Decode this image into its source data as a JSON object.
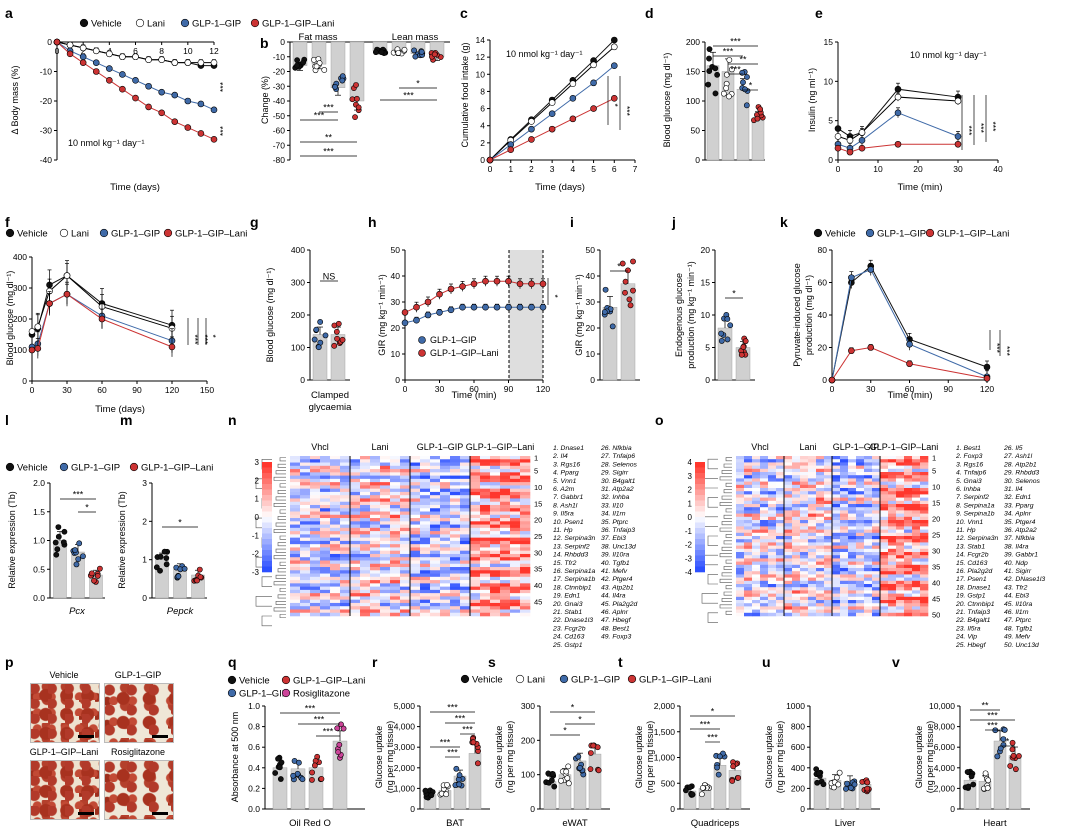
{
  "colors": {
    "vehicle": "#111111",
    "lani": "#ffffff",
    "glp_gip": "#3f6aa8",
    "glp_gip_lani": "#cc3333",
    "rosi": "#cc4499",
    "bar": "#d0d0d0"
  },
  "legends": {
    "vehicle": "Vehicle",
    "lani": "Lani",
    "glp_gip": "GLP-1–GIP",
    "glp_gip_lani": "GLP-1–GIP–Lani",
    "rosi": "Rosiglitazone"
  },
  "panels": {
    "a": {
      "label": "a",
      "xlabel": "Time (days)",
      "ylabel": "Δ Body mass (%)",
      "note": "10 nmol kg⁻¹ day⁻¹",
      "sig": [
        "***",
        "***"
      ]
    },
    "b": {
      "label": "b",
      "ylabel": "Change (%)",
      "cat1": "Fat mass",
      "cat2": "Lean mass"
    },
    "c": {
      "label": "c",
      "xlabel": "Time (days)",
      "ylabel": "Cumulative food intake (g)",
      "note": "10 nmol kg⁻¹ day⁻¹"
    },
    "d": {
      "label": "d",
      "ylabel": "Blood glucose (mg dl⁻¹)"
    },
    "e": {
      "label": "e",
      "xlabel": "Time (min)",
      "ylabel": "Insulin (ng ml⁻¹)",
      "note": "10 nmol kg⁻¹ day⁻¹"
    },
    "f": {
      "label": "f",
      "xlabel": "Time (days)",
      "ylabel": "Blood glucose (mg dl⁻¹)"
    },
    "g": {
      "label": "g",
      "ylabel": "Blood glucose (mg dl⁻¹)",
      "cat": "Clamped",
      "cat2": "glycaemia",
      "sig": "NS"
    },
    "h": {
      "label": "h",
      "xlabel": "Time (min)",
      "ylabel": "GIR (mg kg⁻¹ min⁻¹)",
      "sig": "*"
    },
    "i": {
      "label": "i",
      "ylabel": "GIR (mg kg⁻¹ min⁻¹)",
      "sig": "*"
    },
    "j": {
      "label": "j",
      "ylabel1": "Endogenous glucose",
      "ylabel2": "production (mg kg⁻¹ min⁻¹)",
      "sig": "*"
    },
    "k": {
      "label": "k",
      "xlabel": "Time (min)",
      "ylabel1": "Pyruvate-induced glucose",
      "ylabel2": "production (mg dl⁻¹)"
    },
    "l": {
      "label": "l",
      "ylabel": "Relative expression (Tb)",
      "gene": "Pcx"
    },
    "m": {
      "label": "m",
      "ylabel": "Relative expression (Tb)",
      "gene": "Pepck"
    },
    "n": {
      "label": "n",
      "groups": [
        "Vhcl",
        "Lani",
        "GLP-1–GIP",
        "GLP-1–GIP–Lani"
      ]
    },
    "o": {
      "label": "o",
      "groups": [
        "Vhcl",
        "Lani",
        "GLP-1–GIP",
        "GLP-1–GIP–Lani"
      ]
    },
    "p": {
      "label": "p"
    },
    "q": {
      "label": "q",
      "ylabel": "Absorbance at 500 nm",
      "cat": "Oil Red O"
    },
    "r": {
      "label": "r",
      "ylabel1": "Glucose uptake",
      "ylabel2": "(ng per mg tissue)",
      "cat": "BAT"
    },
    "s": {
      "label": "s",
      "ylabel1": "Glucose uptake",
      "ylabel2": "(ng per mg tissue)",
      "cat": "eWAT"
    },
    "t": {
      "label": "t",
      "ylabel1": "Glucose uptake",
      "ylabel2": "(ng per mg tissue)",
      "cat": "Quadriceps"
    },
    "u": {
      "label": "u",
      "ylabel1": "Glucose uptake",
      "ylabel2": "(ng per mg tissue)",
      "cat": "Liver"
    },
    "v": {
      "label": "v",
      "ylabel1": "Glucose uptake",
      "ylabel2": "(ng per mg tissue)",
      "cat": "Heart"
    }
  },
  "micrographs": [
    "Vehicle",
    "GLP-1–GIP",
    "GLP-1–GIP–Lani",
    "Rosiglitazone"
  ],
  "genes_n": [
    "1. Dnase1",
    "2. Il4",
    "3. Rgs16",
    "4. Pparg",
    "5. Vnn1",
    "6. A2m",
    "7. Gabbr1",
    "8. Ash1l",
    "9. Il5ra",
    "10. Psen1",
    "11. Hp",
    "12. Serpina3n",
    "13. Serpinf2",
    "14. Rhbdd3",
    "15. Tfr2",
    "16. Serpina1a",
    "17. Serpina1b",
    "18. Ctnnbip1",
    "19. Edn1",
    "20. Gnai3",
    "21. Stab1",
    "22. Dnase1l3",
    "23. Fcgr2b",
    "24. Cd163",
    "25. Gstp1",
    "26. Nfkbia",
    "27. Tnfaip6",
    "28. Selenos",
    "29. Sigirr",
    "30. B4galt1",
    "31. Atp2a2",
    "32. Inhba",
    "33. Il10",
    "34. Il1rn",
    "35. Ptprc",
    "36. Tnfaip3",
    "37. Ebi3",
    "38. Unc13d",
    "39. Il10ra",
    "40. Tgfb1",
    "41. Mefv",
    "42. Ptger4",
    "43. Atp2b1",
    "44. Il4ra",
    "45. Pla2g2d",
    "46. Aplnr",
    "47. Hbegf",
    "48. Best1",
    "49. Foxp3"
  ],
  "genes_o": [
    "1. Best1",
    "2. Foxp3",
    "3. Rgs16",
    "4. Tnfaip6",
    "5. Gnai3",
    "6. Inhba",
    "7. Serpinf2",
    "8. Serpina1a",
    "9. Serpina1b",
    "10. Vnn1",
    "11. Hp",
    "12. Serpina3n",
    "13. Stab1",
    "14. Fcgr2b",
    "15. Cd163",
    "16. Pla2g2d",
    "17. Psen1",
    "18. Dnase1",
    "19. Gstp1",
    "20. Ctnnbip1",
    "21. Tnfaip3",
    "22. B4galt1",
    "23. Il5ra",
    "24. Vip",
    "25. Hbegf",
    "26. Il5",
    "27. Ash1l",
    "28. Atp2b1",
    "29. Rhbdd3",
    "30. Selenos",
    "31. Il4",
    "32. Edn1",
    "33. Pparg",
    "34. Aplnr",
    "35. Ptger4",
    "36. Atp2a2",
    "37. Nfkbia",
    "38. Il4ra",
    "39. Gabbr1",
    "40. Ndp",
    "41. Sigirr",
    "42. DNase1l3",
    "43. Tfr2",
    "44. Ebi3",
    "45. Il10ra",
    "46. Il1rn",
    "47. Ptprc",
    "48. Tgfb1",
    "49. Mefv",
    "50. Unc13d"
  ],
  "chart_data": [
    {
      "panel": "a",
      "type": "line",
      "x": [
        0,
        1,
        2,
        3,
        4,
        5,
        6,
        7,
        8,
        9,
        10,
        11,
        12
      ],
      "xlim": [
        0,
        12
      ],
      "ylim": [
        -40,
        0
      ],
      "xlabel": "Time (days)",
      "ylabel": "Δ Body mass (%)",
      "series": [
        {
          "name": "Vehicle",
          "values": [
            0,
            -1,
            -2,
            -3,
            -4,
            -5,
            -5,
            -6,
            -6,
            -7,
            -7,
            -8,
            -8
          ]
        },
        {
          "name": "Lani",
          "values": [
            0,
            -1,
            -2,
            -3,
            -4,
            -5,
            -5,
            -6,
            -6,
            -7,
            -7,
            -7,
            -7
          ]
        },
        {
          "name": "GLP-1–GIP",
          "values": [
            0,
            -3,
            -5,
            -7,
            -9,
            -11,
            -13,
            -15,
            -17,
            -18,
            -20,
            -21,
            -23
          ]
        },
        {
          "name": "GLP-1–GIP–Lani",
          "values": [
            0,
            -4,
            -7,
            -10,
            -13,
            -16,
            -19,
            -22,
            -24,
            -27,
            -29,
            -31,
            -33
          ]
        }
      ]
    },
    {
      "panel": "b",
      "type": "bar",
      "categories": [
        "Fat mass",
        "Lean mass"
      ],
      "ylim": [
        -80,
        0
      ],
      "ylabel": "Change (%)",
      "series": [
        {
          "name": "Vehicle",
          "values": [
            -16,
            -6
          ]
        },
        {
          "name": "Lani",
          "values": [
            -15,
            -7
          ]
        },
        {
          "name": "GLP-1–GIP",
          "values": [
            -31,
            -8
          ]
        },
        {
          "name": "GLP-1–GIP–Lani",
          "values": [
            -40,
            -10
          ]
        }
      ]
    },
    {
      "panel": "c",
      "type": "line",
      "x": [
        0,
        1,
        2,
        3,
        4,
        5,
        6
      ],
      "xlim": [
        0,
        7
      ],
      "ylim": [
        0,
        14
      ],
      "xlabel": "Time (days)",
      "ylabel": "Cumulative food intake (g)",
      "series": [
        {
          "name": "Vehicle",
          "values": [
            0,
            2.4,
            4.7,
            7,
            9.3,
            11.6,
            14
          ]
        },
        {
          "name": "Lani",
          "values": [
            0,
            2.3,
            4.5,
            6.7,
            8.9,
            11.1,
            13.2
          ]
        },
        {
          "name": "GLP-1–GIP",
          "values": [
            0,
            1.8,
            3.6,
            5.4,
            7.2,
            9,
            11
          ]
        },
        {
          "name": "GLP-1–GIP–Lani",
          "values": [
            0,
            1.2,
            2.4,
            3.6,
            4.8,
            6,
            7.2
          ]
        }
      ]
    },
    {
      "panel": "d",
      "type": "bar",
      "categories": [
        "Vehicle",
        "Lani",
        "GLP-1–GIP",
        "GLP-1–GIP–Lani"
      ],
      "values": [
        160,
        150,
        120,
        70
      ],
      "ylim": [
        0,
        200
      ],
      "ylabel": "Blood glucose (mg dl⁻¹)"
    },
    {
      "panel": "e",
      "type": "line",
      "x": [
        0,
        3,
        6,
        15,
        30
      ],
      "xlim": [
        0,
        40
      ],
      "ylim": [
        0,
        15
      ],
      "xlabel": "Time (min)",
      "ylabel": "Insulin (ng ml⁻¹)",
      "series": [
        {
          "name": "Vehicle",
          "values": [
            4,
            3,
            3.5,
            9,
            8
          ]
        },
        {
          "name": "Lani",
          "values": [
            3,
            2.5,
            3.5,
            8,
            7.5
          ]
        },
        {
          "name": "GLP-1–GIP",
          "values": [
            2,
            1.5,
            2.5,
            6,
            3
          ]
        },
        {
          "name": "GLP-1–GIP–Lani",
          "values": [
            1.5,
            1,
            1.5,
            2,
            2
          ]
        }
      ]
    },
    {
      "panel": "f",
      "type": "line",
      "x": [
        0,
        5,
        15,
        30,
        60,
        120
      ],
      "xlim": [
        0,
        150
      ],
      "ylim": [
        0,
        400
      ],
      "xlabel": "Time (days)",
      "ylabel": "Blood glucose (mg dl⁻¹)",
      "series": [
        {
          "name": "Vehicle",
          "values": [
            150,
            170,
            310,
            340,
            250,
            180
          ]
        },
        {
          "name": "Lani",
          "values": [
            160,
            175,
            290,
            340,
            240,
            170
          ]
        },
        {
          "name": "GLP-1–GIP",
          "values": [
            110,
            120,
            250,
            280,
            210,
            130
          ]
        },
        {
          "name": "GLP-1–GIP–Lani",
          "values": [
            100,
            105,
            250,
            280,
            200,
            110
          ]
        }
      ]
    },
    {
      "panel": "g",
      "type": "bar",
      "categories": [
        "GLP-1–GIP",
        "GLP-1–GIP–Lani"
      ],
      "values": [
        140,
        140
      ],
      "ylim": [
        0,
        400
      ],
      "ylabel": "Blood glucose (mg dl⁻¹)"
    },
    {
      "panel": "h",
      "type": "line",
      "x": [
        0,
        10,
        20,
        30,
        40,
        50,
        60,
        70,
        80,
        90,
        100,
        110,
        120
      ],
      "xlim": [
        0,
        120
      ],
      "ylim": [
        0,
        50
      ],
      "xlabel": "Time (min)",
      "ylabel": "GIR (mg kg⁻¹ min⁻¹)",
      "series": [
        {
          "name": "GLP-1–GIP",
          "values": [
            22,
            23,
            25,
            26,
            27,
            28,
            28,
            28,
            28,
            28,
            28,
            28,
            28
          ]
        },
        {
          "name": "GLP-1–GIP–Lani",
          "values": [
            26,
            28,
            30,
            33,
            35,
            36,
            37,
            38,
            38,
            38,
            37,
            37,
            37
          ]
        }
      ]
    },
    {
      "panel": "i",
      "type": "bar",
      "categories": [
        "GLP-1–GIP",
        "GLP-1–GIP–Lani"
      ],
      "values": [
        28,
        37
      ],
      "ylim": [
        0,
        50
      ],
      "ylabel": "GIR (mg kg⁻¹ min⁻¹)"
    },
    {
      "panel": "j",
      "type": "bar",
      "categories": [
        "GLP-1–GIP",
        "GLP-1–GIP–Lani"
      ],
      "values": [
        8,
        5
      ],
      "ylim": [
        0,
        20
      ],
      "ylabel": "Endogenous glucose production (mg kg⁻¹ min⁻¹)"
    },
    {
      "panel": "k",
      "type": "line",
      "x": [
        0,
        15,
        30,
        60,
        120
      ],
      "xlim": [
        0,
        120
      ],
      "ylim": [
        0,
        80
      ],
      "xlabel": "Time (min)",
      "ylabel": "Pyruvate-induced glucose production (mg dl⁻¹)",
      "series": [
        {
          "name": "Vehicle",
          "values": [
            0,
            60,
            70,
            25,
            8
          ]
        },
        {
          "name": "GLP-1–GIP",
          "values": [
            0,
            63,
            68,
            22,
            2
          ]
        },
        {
          "name": "GLP-1–GIP–Lani",
          "values": [
            0,
            18,
            20,
            10,
            1
          ]
        }
      ]
    },
    {
      "panel": "l",
      "type": "bar",
      "categories": [
        "Vehicle",
        "GLP-1–GIP",
        "GLP-1–GIP–Lani"
      ],
      "values": [
        1.0,
        0.8,
        0.4
      ],
      "ylim": [
        0,
        2.0
      ],
      "ylabel": "Relative expression (Tb)",
      "xlabel": "Pcx"
    },
    {
      "panel": "m",
      "type": "bar",
      "categories": [
        "Vehicle",
        "GLP-1–GIP",
        "GLP-1–GIP–Lani"
      ],
      "values": [
        1.0,
        0.75,
        0.6
      ],
      "ylim": [
        0,
        3
      ],
      "ylabel": "Relative expression (Tb)",
      "xlabel": "Pepck"
    },
    {
      "panel": "n",
      "type": "heatmap",
      "legend_range": [
        -3,
        3
      ],
      "columns": [
        "Vhcl",
        "Lani",
        "GLP-1–GIP",
        "GLP-1–GIP–Lani"
      ]
    },
    {
      "panel": "o",
      "type": "heatmap",
      "legend_range": [
        -4,
        4
      ],
      "columns": [
        "Vhcl",
        "Lani",
        "GLP-1–GIP",
        "GLP-1–GIP–Lani"
      ]
    },
    {
      "panel": "q",
      "type": "bar",
      "categories": [
        "Vehicle",
        "GLP-1–GIP",
        "GLP-1–GIP–Lani",
        "Rosiglitazone"
      ],
      "values": [
        0.4,
        0.39,
        0.4,
        0.66
      ],
      "ylim": [
        0,
        1.0
      ],
      "ylabel": "Absorbance at 500 nm",
      "xlabel": "Oil Red O"
    },
    {
      "panel": "r",
      "type": "bar",
      "categories": [
        "Vehicle",
        "Lani",
        "GLP-1–GIP",
        "GLP-1–GIP–Lani"
      ],
      "values": [
        700,
        900,
        1600,
        2700
      ],
      "ylim": [
        0,
        5000
      ],
      "ylabel": "Glucose uptake (ng per mg tissue)",
      "xlabel": "BAT"
    },
    {
      "panel": "s",
      "type": "bar",
      "categories": [
        "Vehicle",
        "Lani",
        "GLP-1–GIP",
        "GLP-1–GIP–Lani"
      ],
      "values": [
        80,
        100,
        140,
        160
      ],
      "ylim": [
        0,
        300
      ],
      "ylabel": "Glucose uptake (ng per mg tissue)",
      "xlabel": "eWAT"
    },
    {
      "panel": "t",
      "type": "bar",
      "categories": [
        "Vehicle",
        "Lani",
        "GLP-1–GIP",
        "GLP-1–GIP–Lani"
      ],
      "values": [
        350,
        400,
        850,
        750
      ],
      "ylim": [
        0,
        2000
      ],
      "ylabel": "Glucose uptake (ng per mg tissue)",
      "xlabel": "Quadriceps"
    },
    {
      "panel": "u",
      "type": "bar",
      "categories": [
        "Vehicle",
        "Lani",
        "GLP-1–GIP",
        "GLP-1–GIP–Lani"
      ],
      "values": [
        300,
        280,
        270,
        240
      ],
      "ylim": [
        0,
        1000
      ],
      "ylabel": "Glucose uptake (ng per mg tissue)",
      "xlabel": "Liver"
    },
    {
      "panel": "v",
      "type": "bar",
      "categories": [
        "Vehicle",
        "Lani",
        "GLP-1–GIP",
        "GLP-1–GIP–Lani"
      ],
      "values": [
        2800,
        2700,
        6600,
        5200
      ],
      "ylim": [
        0,
        10000
      ],
      "ylabel": "Glucose uptake (ng per mg tissue)",
      "xlabel": "Heart"
    }
  ]
}
